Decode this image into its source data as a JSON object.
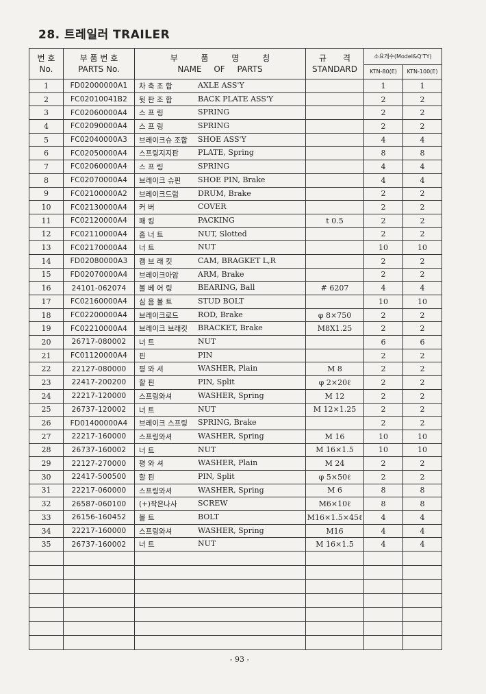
{
  "header": {
    "title": "28. 트레일러 TRAILER"
  },
  "table": {
    "columns": {
      "no": [
        "번 호",
        "No."
      ],
      "part_no": [
        "부 품 번 호",
        "PARTS No."
      ],
      "name": [
        "부 품 명 칭",
        "NAME OF PARTS"
      ],
      "standard": [
        "규 격",
        "STANDARD"
      ],
      "qty": "소요개수(Model&Q'TY)",
      "models": [
        "KTN-80(E)",
        "KTN-100(E)"
      ]
    },
    "rows": [
      {
        "no": 1,
        "part_no": "FD02000000A1",
        "name_ko": "차 축 조 합",
        "name_en": "AXLE ASS'Y",
        "qty": [
          1,
          1
        ]
      },
      {
        "no": 2,
        "part_no": "FC02010041B2",
        "name_ko": "뒷 판 조 합",
        "name_en": "BACK PLATE ASS'Y",
        "qty": [
          2,
          2
        ]
      },
      {
        "no": 3,
        "part_no": "FC02060000A4",
        "name_ko": "스 프 링",
        "name_en": "SPRING",
        "qty": [
          2,
          2
        ]
      },
      {
        "no": 4,
        "part_no": "FC02090000A4",
        "name_ko": "스 프 링",
        "name_en": "SPRING",
        "qty": [
          2,
          2
        ]
      },
      {
        "no": 5,
        "part_no": "FC02040000A3",
        "name_ko": "브레이크슈 조합",
        "name_en": "SHOE ASS'Y",
        "qty": [
          4,
          4
        ]
      },
      {
        "no": 6,
        "part_no": "FC02050000A4",
        "name_ko": "스프링지지판",
        "name_en": "PLATE, Spring",
        "qty": [
          8,
          8
        ]
      },
      {
        "no": 7,
        "part_no": "FC02060000A4",
        "name_ko": "스 프 링",
        "name_en": "SPRING",
        "qty": [
          4,
          4
        ]
      },
      {
        "no": 8,
        "part_no": "FC02070000A4",
        "name_ko": "브레이크 슈핀",
        "name_en": "SHOE PIN, Brake",
        "qty": [
          4,
          4
        ]
      },
      {
        "no": 9,
        "part_no": "FC02100000A2",
        "name_ko": "브레이크드럼",
        "name_en": "DRUM, Brake",
        "qty": [
          2,
          2
        ]
      },
      {
        "no": 10,
        "part_no": "FC02130000A4",
        "name_ko": "커 버",
        "name_en": "COVER",
        "qty": [
          2,
          2
        ]
      },
      {
        "no": 11,
        "part_no": "FC02120000A4",
        "name_ko": "패 킹",
        "name_en": "PACKING",
        "standard": "t 0.5",
        "qty": [
          2,
          2
        ]
      },
      {
        "no": 12,
        "part_no": "FC02110000A4",
        "name_ko": "홈 너 트",
        "name_en": "NUT, Slotted",
        "qty": [
          2,
          2
        ]
      },
      {
        "no": 13,
        "part_no": "FC02170000A4",
        "name_ko": "너 트",
        "name_en": "NUT",
        "qty": [
          10,
          10
        ]
      },
      {
        "no": 14,
        "part_no": "FD02080000A3",
        "name_ko": "캠 브 래 킷",
        "name_en": "CAM, BRAGKET L,R",
        "qty": [
          2,
          2
        ]
      },
      {
        "no": 15,
        "part_no": "FD02070000A4",
        "name_ko": "브레이크아암",
        "name_en": "ARM, Brake",
        "qty": [
          2,
          2
        ]
      },
      {
        "no": 16,
        "part_no": "24101-062074",
        "name_ko": "볼 베 어 링",
        "name_en": "BEARING, Ball",
        "standard": "# 6207",
        "qty": [
          4,
          4
        ]
      },
      {
        "no": 17,
        "part_no": "FC02160000A4",
        "name_ko": "심 음 볼 트",
        "name_en": "STUD BOLT",
        "qty": [
          10,
          10
        ]
      },
      {
        "no": 18,
        "part_no": "FC02200000A4",
        "name_ko": "브레이크로드",
        "name_en": "ROD, Brake",
        "standard": "φ 8×750",
        "qty": [
          2,
          2
        ]
      },
      {
        "no": 19,
        "part_no": "FC02210000A4",
        "name_ko": "브레이크 브래킷",
        "name_en": "BRACKET, Brake",
        "standard": "M8X1.25",
        "qty": [
          2,
          2
        ]
      },
      {
        "no": 20,
        "part_no": "26717-080002",
        "name_ko": "너 트",
        "name_en": "NUT",
        "qty": [
          6,
          6
        ]
      },
      {
        "no": 21,
        "part_no": "FC01120000A4",
        "name_ko": "핀",
        "name_en": "PIN",
        "qty": [
          2,
          2
        ]
      },
      {
        "no": 22,
        "part_no": "22127-080000",
        "name_ko": "평 와 셔",
        "name_en": "WASHER, Plain",
        "standard": "M 8",
        "qty": [
          2,
          2
        ]
      },
      {
        "no": 23,
        "part_no": "22417-200200",
        "name_ko": "할 핀",
        "name_en": "PIN, Split",
        "standard": "φ 2×20ℓ",
        "qty": [
          2,
          2
        ]
      },
      {
        "no": 24,
        "part_no": "22217-120000",
        "name_ko": "스프링와셔",
        "name_en": "WASHER, Spring",
        "standard": "M 12",
        "qty": [
          2,
          2
        ]
      },
      {
        "no": 25,
        "part_no": "26737-120002",
        "name_ko": "너 트",
        "name_en": "NUT",
        "standard": "M 12×1.25",
        "qty": [
          2,
          2
        ]
      },
      {
        "no": 26,
        "part_no": "FD01400000A4",
        "name_ko": "브레이크 스프링",
        "name_en": "SPRING, Brake",
        "qty": [
          2,
          2
        ]
      },
      {
        "no": 27,
        "part_no": "22217-160000",
        "name_ko": "스프링와셔",
        "name_en": "WASHER, Spring",
        "standard": "M 16",
        "qty": [
          10,
          10
        ]
      },
      {
        "no": 28,
        "part_no": "26737-160002",
        "name_ko": "너 트",
        "name_en": "NUT",
        "standard": "M 16×1.5",
        "qty": [
          10,
          10
        ]
      },
      {
        "no": 29,
        "part_no": "22127-270000",
        "name_ko": "평 와 셔",
        "name_en": "WASHER, Plain",
        "standard": "M 24",
        "qty": [
          2,
          2
        ]
      },
      {
        "no": 30,
        "part_no": "22417-500500",
        "name_ko": "할 핀",
        "name_en": "PIN, Split",
        "standard": "φ 5×50ℓ",
        "qty": [
          2,
          2
        ]
      },
      {
        "no": 31,
        "part_no": "22217-060000",
        "name_ko": "스프링와셔",
        "name_en": "WASHER, Spring",
        "standard": "M 6",
        "qty": [
          8,
          8
        ]
      },
      {
        "no": 32,
        "part_no": "26587-060100",
        "name_ko": "(+)작은나사",
        "name_en": "SCREW",
        "standard": "M6×10ℓ",
        "qty": [
          8,
          8
        ]
      },
      {
        "no": 33,
        "part_no": "26156-160452",
        "name_ko": "볼 트",
        "name_en": "BOLT",
        "standard": "M16×1.5×45ℓ",
        "qty": [
          4,
          4
        ]
      },
      {
        "no": 34,
        "part_no": "22217-160000",
        "name_ko": "스프링와셔",
        "name_en": "WASHER, Spring",
        "standard": "M16",
        "qty": [
          4,
          4
        ]
      },
      {
        "no": 35,
        "part_no": "26737-160002",
        "name_ko": "너 트",
        "name_en": "NUT",
        "standard": "M 16×1.5",
        "qty": [
          4,
          4
        ]
      }
    ]
  },
  "footer": {
    "page": "- 93 -"
  }
}
